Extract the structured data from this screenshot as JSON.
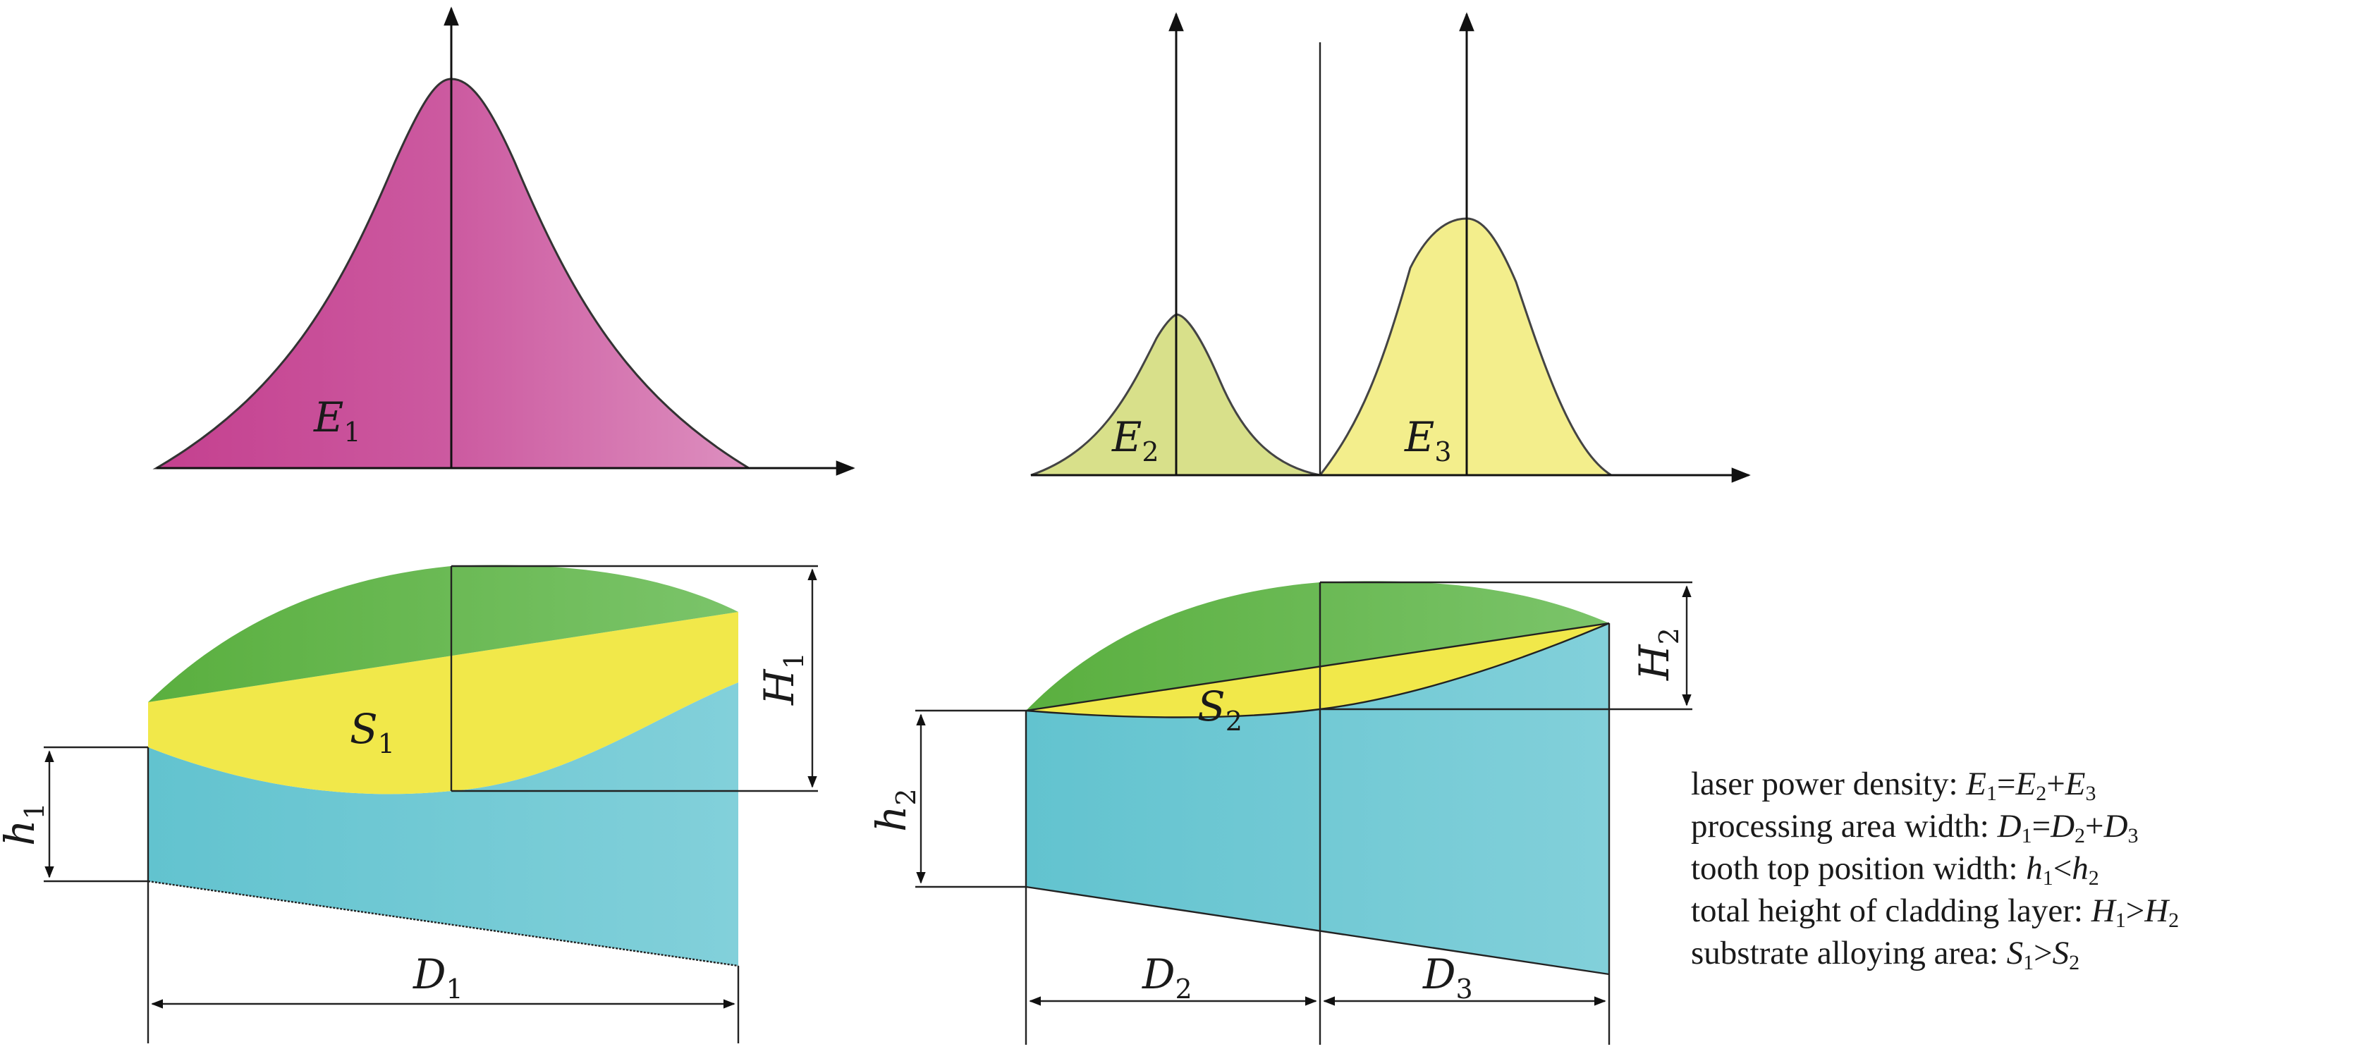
{
  "labels": {
    "e1": {
      "base": "E",
      "sub": "1"
    },
    "e2": {
      "base": "E",
      "sub": "2"
    },
    "e3": {
      "base": "E",
      "sub": "3"
    },
    "s1": {
      "base": "S",
      "sub": "1"
    },
    "s2": {
      "base": "S",
      "sub": "2"
    },
    "H1": {
      "base": "H",
      "sub": "1"
    },
    "H2": {
      "base": "H",
      "sub": "2"
    },
    "h1": {
      "base": "h",
      "sub": "1"
    },
    "h2": {
      "base": "h",
      "sub": "2"
    },
    "D1": {
      "base": "D",
      "sub": "1"
    },
    "D2": {
      "base": "D",
      "sub": "2"
    },
    "D3": {
      "base": "D",
      "sub": "3"
    }
  },
  "legend": [
    {
      "text": "laser power density: ",
      "parts": [
        [
          "E",
          "1"
        ],
        "=",
        [
          "E",
          "2"
        ],
        "+",
        [
          "E",
          "3"
        ]
      ]
    },
    {
      "text": "processing area width: ",
      "parts": [
        [
          "D",
          "1"
        ],
        "=",
        [
          "D",
          "2"
        ],
        "+",
        [
          "D",
          "3"
        ]
      ]
    },
    {
      "text": "tooth top position width: ",
      "parts": [
        [
          "h",
          "1"
        ],
        "<",
        [
          "h",
          "2"
        ]
      ]
    },
    {
      "text": "total height of cladding layer: ",
      "parts": [
        [
          "H",
          "1"
        ],
        ">",
        [
          "H",
          "2"
        ]
      ]
    },
    {
      "text": "substrate alloying area: ",
      "parts": [
        [
          "S",
          "1"
        ],
        ">",
        [
          "S",
          "2"
        ]
      ]
    }
  ],
  "colors": {
    "gauss1": "#c94a96",
    "gauss2": "#d8e08a",
    "gauss3": "#f3ee8c",
    "green": "#66b84a",
    "yellow": "#f1e84a",
    "cyan": "#6fc9d3"
  }
}
